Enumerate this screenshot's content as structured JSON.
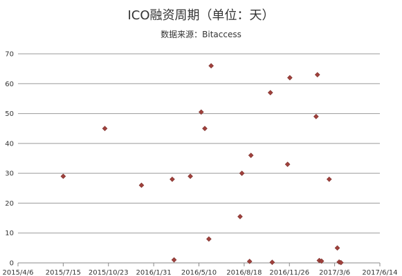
{
  "chart_data": {
    "type": "scatter",
    "title": "ICO融资周期（单位：天）",
    "subtitle": "数据来源：Bitaccess",
    "xlabel": "",
    "ylabel": "",
    "x_ticks": [
      "2015/4/6",
      "2015/7/15",
      "2015/10/23",
      "2016/1/31",
      "2016/5/10",
      "2016/8/18",
      "2016/11/26",
      "2017/3/6",
      "2017/6/14"
    ],
    "ylim": [
      0,
      70
    ],
    "y_ticks": [
      0,
      10,
      20,
      30,
      40,
      50,
      60,
      70
    ],
    "grid": "horizontal",
    "marker_color": "#a0413c",
    "series": [
      {
        "points": [
          {
            "x": "2015-07-15",
            "y": 29
          },
          {
            "x": "2015-10-15",
            "y": 45
          },
          {
            "x": "2016-01-04",
            "y": 26
          },
          {
            "x": "2016-03-12",
            "y": 28
          },
          {
            "x": "2016-03-16",
            "y": 1
          },
          {
            "x": "2016-04-21",
            "y": 29
          },
          {
            "x": "2016-05-15",
            "y": 50.5
          },
          {
            "x": "2016-05-23",
            "y": 45
          },
          {
            "x": "2016-06-01",
            "y": 8
          },
          {
            "x": "2016-06-06",
            "y": 66
          },
          {
            "x": "2016-08-09",
            "y": 15.5
          },
          {
            "x": "2016-08-13",
            "y": 30
          },
          {
            "x": "2016-08-30",
            "y": 0.5
          },
          {
            "x": "2016-09-02",
            "y": 36
          },
          {
            "x": "2016-10-15",
            "y": 57
          },
          {
            "x": "2016-10-19",
            "y": 0.2
          },
          {
            "x": "2016-11-22",
            "y": 33
          },
          {
            "x": "2016-11-27",
            "y": 62
          },
          {
            "x": "2017-01-24",
            "y": 49
          },
          {
            "x": "2017-01-27",
            "y": 63
          },
          {
            "x": "2017-01-31",
            "y": 0.8
          },
          {
            "x": "2017-02-05",
            "y": 0.6
          },
          {
            "x": "2017-02-22",
            "y": 28
          },
          {
            "x": "2017-03-12",
            "y": 5
          },
          {
            "x": "2017-03-16",
            "y": 0.3
          },
          {
            "x": "2017-03-20",
            "y": 0.1
          }
        ]
      }
    ]
  }
}
